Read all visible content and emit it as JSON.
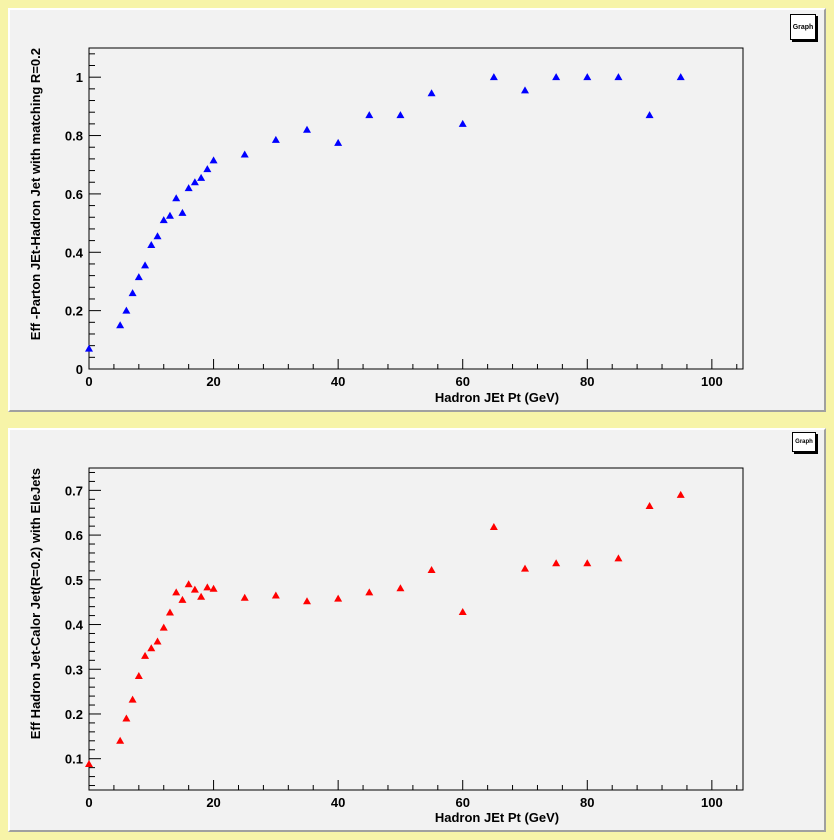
{
  "graph_button_label": "Graph",
  "colors": {
    "background": "#f7f4a8",
    "pad": "#f2f2f2",
    "top_marker": "#0000ff",
    "bottom_marker": "#ff0000"
  },
  "chart_data": [
    {
      "type": "scatter",
      "marker": "triangle-up",
      "color": "#0000ff",
      "xlabel": "Hadron JEt Pt (GeV)",
      "ylabel": "Eff -Parton JEt-Hadron Jet with matching R=0.2",
      "xlim": [
        0,
        105
      ],
      "ylim": [
        0,
        1.1
      ],
      "xticks": [
        0,
        20,
        40,
        60,
        80,
        100
      ],
      "yticks": [
        0,
        0.2,
        0.4,
        0.6,
        0.8,
        1
      ],
      "ytick_labels": [
        "0",
        "0.2",
        "0.4",
        "0.6",
        "0.8",
        "1"
      ],
      "grid": false,
      "x": [
        0,
        5,
        6,
        7,
        8,
        9,
        10,
        11,
        12,
        13,
        14,
        15,
        16,
        17,
        18,
        19,
        20,
        25,
        30,
        35,
        40,
        45,
        50,
        55,
        60,
        65,
        70,
        75,
        80,
        85,
        90,
        95
      ],
      "y": [
        0.07,
        0.15,
        0.2,
        0.26,
        0.315,
        0.355,
        0.425,
        0.455,
        0.51,
        0.525,
        0.585,
        0.535,
        0.62,
        0.64,
        0.655,
        0.685,
        0.715,
        0.735,
        0.785,
        0.82,
        0.775,
        0.87,
        0.87,
        0.945,
        0.84,
        1.0,
        0.955,
        1.0,
        1.0,
        1.0,
        0.87,
        1.0
      ]
    },
    {
      "type": "scatter",
      "marker": "triangle-up",
      "color": "#ff0000",
      "xlabel": "Hadron JEt Pt (GeV)",
      "ylabel": "Eff Hadron Jet-Calor Jet(R=0.2) with EleJets",
      "xlim": [
        0,
        105
      ],
      "ylim": [
        0.03,
        0.75
      ],
      "xticks": [
        0,
        20,
        40,
        60,
        80,
        100
      ],
      "yticks": [
        0.1,
        0.2,
        0.3,
        0.4,
        0.5,
        0.6,
        0.7
      ],
      "ytick_labels": [
        "0.1",
        "0.2",
        "0.3",
        "0.4",
        "0.5",
        "0.6",
        "0.7"
      ],
      "grid": false,
      "x": [
        0,
        5,
        6,
        7,
        8,
        9,
        10,
        11,
        12,
        13,
        14,
        15,
        16,
        17,
        18,
        19,
        20,
        25,
        30,
        35,
        40,
        45,
        50,
        55,
        60,
        65,
        70,
        75,
        80,
        85,
        90,
        95
      ],
      "y": [
        0.088,
        0.14,
        0.19,
        0.232,
        0.285,
        0.33,
        0.347,
        0.362,
        0.393,
        0.427,
        0.472,
        0.455,
        0.49,
        0.478,
        0.462,
        0.483,
        0.48,
        0.46,
        0.465,
        0.452,
        0.458,
        0.472,
        0.481,
        0.522,
        0.428,
        0.618,
        0.525,
        0.537,
        0.537,
        0.548,
        0.665,
        0.69
      ]
    }
  ]
}
